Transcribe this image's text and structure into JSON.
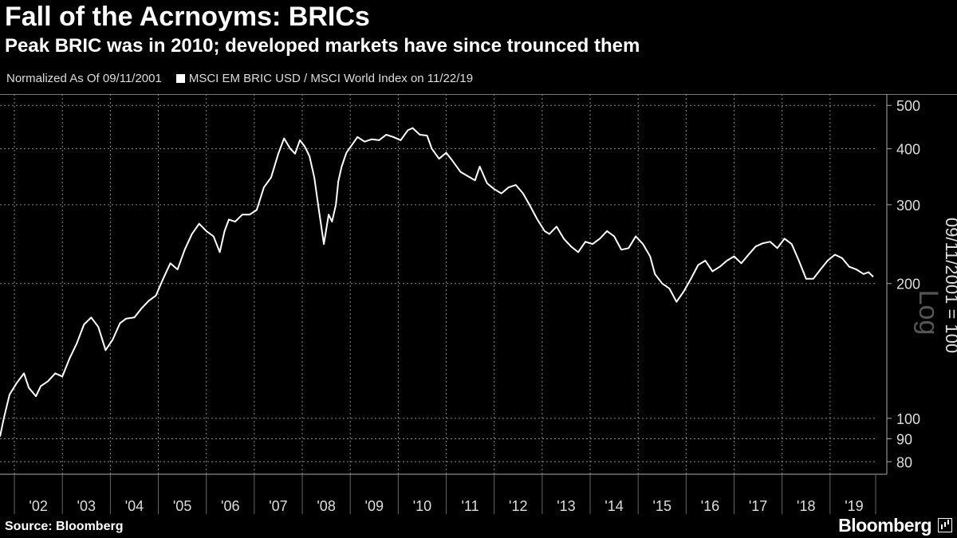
{
  "header": {
    "title": "Fall of the Acrnoyms: BRICs",
    "subtitle": "Peak BRIC was in 2010; developed markets have since trounced them",
    "normalized_note": "Normalized As Of 09/11/2001",
    "legend_label": "MSCI EM BRIC USD / MSCI World Index on 11/22/19"
  },
  "footer": {
    "source": "Source: Bloomberg",
    "brand": "Bloomberg"
  },
  "colors": {
    "background": "#000000",
    "line": "#ffffff",
    "grid": "#888888"
  },
  "chart_data": {
    "type": "line",
    "title": "Fall of the Acrnoyms: BRICs",
    "ylabel": "09/11/2001 = 100",
    "scale_label": "Log",
    "yscale": "log",
    "ylim": [
      75,
      530
    ],
    "xlim": [
      2001.7,
      2019.95
    ],
    "grid": true,
    "legend_position": "top-left",
    "xticks": [
      2002,
      2003,
      2004,
      2005,
      2006,
      2007,
      2008,
      2009,
      2010,
      2011,
      2012,
      2013,
      2014,
      2015,
      2016,
      2017,
      2018,
      2019
    ],
    "xtick_labels": [
      "'02",
      "'03",
      "'04",
      "'05",
      "'06",
      "'07",
      "'08",
      "'09",
      "'10",
      "'11",
      "'12",
      "'13",
      "'14",
      "'15",
      "'16",
      "'17",
      "'18",
      "'19"
    ],
    "yticks": [
      80,
      90,
      100,
      200,
      300,
      400,
      500
    ],
    "ytick_labels": [
      "80",
      "90",
      "100",
      "200",
      "300",
      "400",
      "500"
    ],
    "series": [
      {
        "name": "MSCI EM BRIC USD / MSCI World Index on 11/22/19",
        "x": [
          2001.7,
          2001.78,
          2001.9,
          2002.05,
          2002.2,
          2002.3,
          2002.45,
          2002.55,
          2002.7,
          2002.85,
          2003.0,
          2003.15,
          2003.3,
          2003.45,
          2003.6,
          2003.75,
          2003.9,
          2004.05,
          2004.2,
          2004.33,
          2004.5,
          2004.65,
          2004.8,
          2004.95,
          2005.1,
          2005.25,
          2005.4,
          2005.55,
          2005.7,
          2005.85,
          2006.0,
          2006.15,
          2006.28,
          2006.38,
          2006.47,
          2006.6,
          2006.75,
          2006.9,
          2007.05,
          2007.2,
          2007.35,
          2007.5,
          2007.62,
          2007.75,
          2007.85,
          2007.95,
          2008.05,
          2008.15,
          2008.25,
          2008.35,
          2008.45,
          2008.55,
          2008.62,
          2008.7,
          2008.75,
          2008.82,
          2008.92,
          2009.05,
          2009.15,
          2009.3,
          2009.45,
          2009.6,
          2009.75,
          2009.9,
          2010.05,
          2010.2,
          2010.3,
          2010.45,
          2010.6,
          2010.7,
          2010.85,
          2011.0,
          2011.1,
          2011.3,
          2011.5,
          2011.6,
          2011.7,
          2011.85,
          2012.0,
          2012.15,
          2012.3,
          2012.45,
          2012.6,
          2012.75,
          2012.9,
          2013.05,
          2013.15,
          2013.3,
          2013.45,
          2013.6,
          2013.75,
          2013.9,
          2014.05,
          2014.2,
          2014.35,
          2014.5,
          2014.65,
          2014.8,
          2014.95,
          2015.1,
          2015.25,
          2015.35,
          2015.5,
          2015.65,
          2015.8,
          2015.95,
          2016.1,
          2016.25,
          2016.4,
          2016.55,
          2016.7,
          2016.85,
          2017.0,
          2017.15,
          2017.3,
          2017.45,
          2017.6,
          2017.75,
          2017.9,
          2018.05,
          2018.2,
          2018.35,
          2018.5,
          2018.65,
          2018.8,
          2018.95,
          2019.1,
          2019.25,
          2019.4,
          2019.55,
          2019.7,
          2019.8,
          2019.9
        ],
        "values": [
          91,
          100,
          113,
          120,
          126,
          117,
          112,
          118,
          121,
          126,
          124,
          136,
          147,
          162,
          168,
          160,
          142,
          150,
          163,
          167,
          168,
          176,
          183,
          188,
          205,
          222,
          215,
          238,
          258,
          272,
          262,
          255,
          235,
          262,
          278,
          275,
          285,
          285,
          292,
          328,
          345,
          390,
          422,
          400,
          390,
          418,
          405,
          385,
          345,
          290,
          245,
          285,
          275,
          300,
          338,
          365,
          392,
          410,
          425,
          415,
          420,
          418,
          430,
          425,
          418,
          440,
          445,
          430,
          428,
          400,
          380,
          392,
          380,
          355,
          345,
          340,
          365,
          335,
          325,
          318,
          328,
          332,
          318,
          298,
          278,
          262,
          258,
          268,
          252,
          242,
          235,
          248,
          245,
          252,
          262,
          255,
          238,
          240,
          255,
          245,
          230,
          210,
          200,
          195,
          182,
          192,
          205,
          220,
          225,
          213,
          218,
          225,
          230,
          222,
          232,
          242,
          246,
          248,
          240,
          252,
          245,
          225,
          205,
          205,
          215,
          225,
          232,
          228,
          218,
          215,
          210,
          212,
          207
        ]
      }
    ]
  }
}
